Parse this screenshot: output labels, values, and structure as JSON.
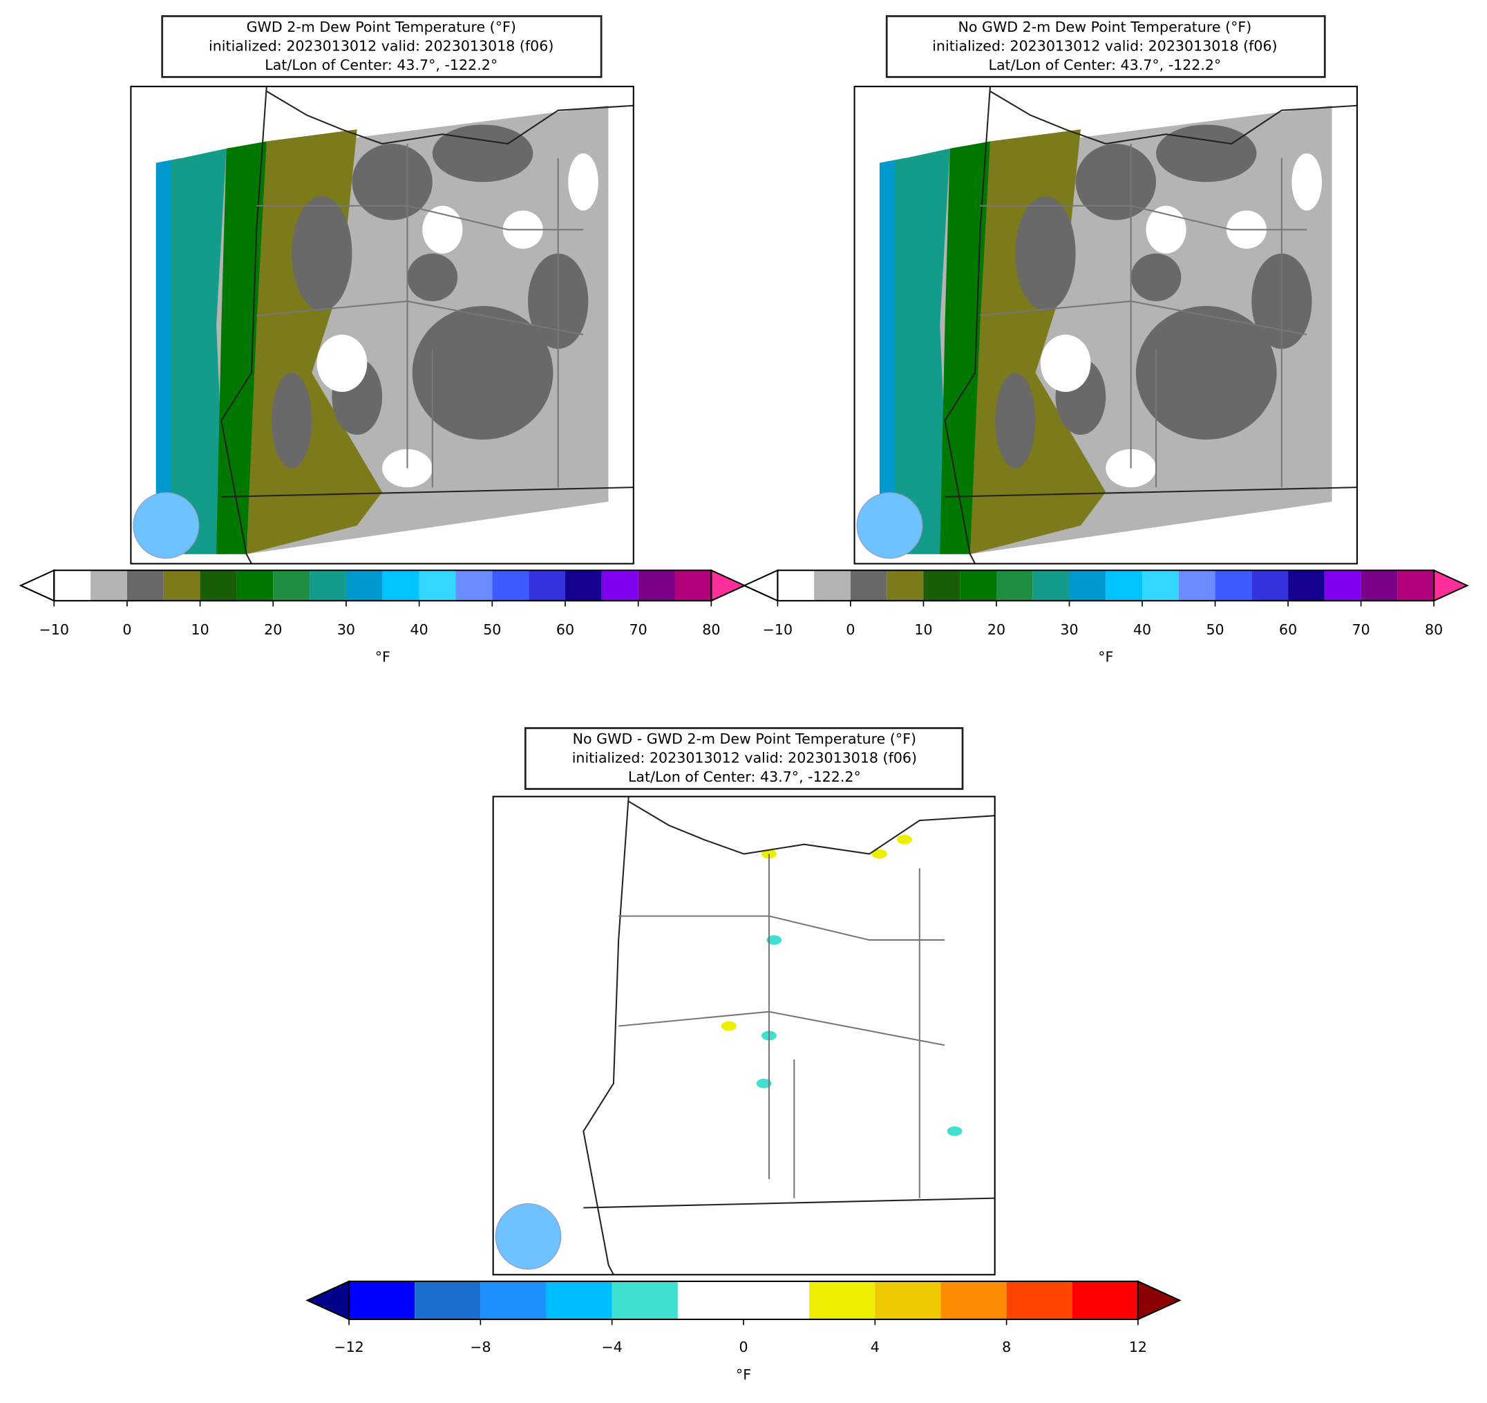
{
  "panels": [
    {
      "title": [
        "GWD 2-m Dew Point Temperature (°F)",
        "initialized: 2023013012 valid: 2023013018 (f06)",
        "Lat/Lon of Center: 43.7°, -122.2°"
      ],
      "colorbar": {
        "label": "°F",
        "boundaries": [
          -10,
          -5,
          0,
          5,
          10,
          15,
          20,
          25,
          30,
          35,
          40,
          45,
          50,
          55,
          60,
          65,
          70,
          75,
          80
        ],
        "colors": [
          "#ffffff",
          "#b4b4b4",
          "#696969",
          "#7b7b1c",
          "#1b5e0a",
          "#007800",
          "#1f8e41",
          "#139c8a",
          "#0099cf",
          "#00c3ff",
          "#33d6ff",
          "#6b8cff",
          "#3d5cff",
          "#3333dd",
          "#140091",
          "#7f00ee",
          "#7a0088",
          "#b0007a"
        ],
        "under_color": "#ffffff",
        "over_color": "#ff2e9a",
        "ticks": [
          {
            "value": -10,
            "label": "−10"
          },
          0,
          10,
          20,
          30,
          40,
          50,
          60,
          70,
          80
        ]
      }
    },
    {
      "title": [
        "No GWD 2-m Dew Point Temperature (°F)",
        "initialized: 2023013012 valid: 2023013018 (f06)",
        "Lat/Lon of Center: 43.7°, -122.2°"
      ],
      "colorbar": {
        "label": "°F",
        "boundaries": [
          -10,
          -5,
          0,
          5,
          10,
          15,
          20,
          25,
          30,
          35,
          40,
          45,
          50,
          55,
          60,
          65,
          70,
          75,
          80
        ],
        "colors": [
          "#ffffff",
          "#b4b4b4",
          "#696969",
          "#7b7b1c",
          "#1b5e0a",
          "#007800",
          "#1f8e41",
          "#139c8a",
          "#0099cf",
          "#00c3ff",
          "#33d6ff",
          "#6b8cff",
          "#3d5cff",
          "#3333dd",
          "#140091",
          "#7f00ee",
          "#7a0088",
          "#b0007a"
        ],
        "under_color": "#ffffff",
        "over_color": "#ff2e9a",
        "ticks": [
          {
            "value": -10,
            "label": "−10"
          },
          0,
          10,
          20,
          30,
          40,
          50,
          60,
          70,
          80
        ]
      }
    },
    {
      "title": [
        "No GWD - GWD 2-m Dew Point Temperature (°F)",
        "initialized: 2023013012 valid: 2023013018 (f06)",
        "Lat/Lon of Center: 43.7°, -122.2°"
      ],
      "colorbar": {
        "label": "°F",
        "boundaries": [
          -12,
          -10,
          -8,
          -6,
          -4,
          -2,
          0,
          2,
          4,
          6,
          8,
          10,
          12
        ],
        "colors": [
          "#0000ff",
          "#1a6fcf",
          "#1e90ff",
          "#00bfff",
          "#40e0d0",
          "#ffffff",
          "#ffffff",
          "#eeee00",
          "#eec900",
          "#ff8c00",
          "#ff4500",
          "#ff0000"
        ],
        "under_color": "#00008b",
        "over_color": "#8b0000",
        "ticks": [
          {
            "value": -12,
            "label": "−12"
          },
          {
            "value": -8,
            "label": "−8"
          },
          {
            "value": -4,
            "label": "−4"
          },
          0,
          4,
          8,
          12
        ]
      }
    }
  ]
}
